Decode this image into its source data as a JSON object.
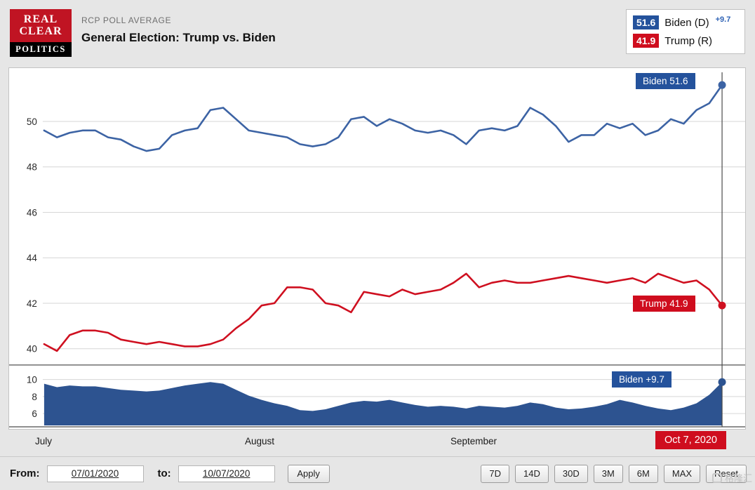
{
  "header": {
    "logo": {
      "line1": "REAL",
      "line2": "CLEAR",
      "line3": "POLITICS"
    },
    "kicker": "RCP POLL AVERAGE",
    "title": "General Election: Trump vs. Biden"
  },
  "legend": {
    "biden": {
      "value": "51.6",
      "label": "Biden (D)",
      "change": "+9.7"
    },
    "trump": {
      "value": "41.9",
      "label": "Trump (R)"
    }
  },
  "overlays": {
    "biden_end": "Biden 51.6",
    "trump_end": "Trump 41.9",
    "spread_end": "Biden +9.7",
    "date_end": "Oct 7, 2020"
  },
  "controls": {
    "from_label": "From:",
    "from_value": "07/01/2020",
    "to_label": "to:",
    "to_value": "10/07/2020",
    "apply_label": "Apply",
    "range_buttons": [
      "7D",
      "14D",
      "30D",
      "3M",
      "6M",
      "MAX",
      "Reset"
    ]
  },
  "watermark": "格隆汇",
  "colors": {
    "biden_chip_blue": "#24529c",
    "biden_line_blue": "#3c63a4",
    "trump_red": "#cf0d1e",
    "spread_area_navy": "#2d5390",
    "grid": "#d6d6d6",
    "logo_red": "#c01423"
  },
  "chart_data": {
    "type": "line",
    "title": "General Election: Trump vs. Biden",
    "subtitle": "RCP Poll Average",
    "x_axis": {
      "tick_labels": [
        "July",
        "August",
        "September"
      ],
      "start": "07/01/2020",
      "end": "10/07/2020",
      "end_label": "Oct 7, 2020"
    },
    "main_panel": {
      "ylim": [
        39.3,
        52.1
      ],
      "yticks": [
        50,
        48,
        46,
        44,
        42,
        40
      ],
      "grid": true,
      "series": [
        {
          "name": "Biden",
          "color": "#3c63a4",
          "values": [
            49.6,
            49.3,
            49.5,
            49.6,
            49.6,
            49.3,
            49.2,
            48.9,
            48.7,
            48.8,
            49.4,
            49.6,
            49.7,
            50.5,
            50.6,
            50.1,
            49.6,
            49.5,
            49.4,
            49.3,
            49.0,
            48.9,
            49.0,
            49.3,
            50.1,
            50.2,
            49.8,
            50.1,
            49.9,
            49.6,
            49.5,
            49.6,
            49.4,
            49.0,
            49.6,
            49.7,
            49.6,
            49.8,
            50.6,
            50.3,
            49.8,
            49.1,
            49.4,
            49.4,
            49.9,
            49.7,
            49.9,
            49.4,
            49.6,
            50.1,
            49.9,
            50.5,
            50.8,
            51.6
          ]
        },
        {
          "name": "Trump",
          "color": "#cf1020",
          "values": [
            40.2,
            39.9,
            40.6,
            40.8,
            40.8,
            40.7,
            40.4,
            40.3,
            40.2,
            40.3,
            40.2,
            40.1,
            40.1,
            40.2,
            40.4,
            40.9,
            41.3,
            41.9,
            42.0,
            42.7,
            42.7,
            42.6,
            42.0,
            41.9,
            41.6,
            42.5,
            42.4,
            42.3,
            42.6,
            42.4,
            42.5,
            42.6,
            42.9,
            43.3,
            42.7,
            42.9,
            43.0,
            42.9,
            42.9,
            43.0,
            43.1,
            43.2,
            43.1,
            43.0,
            42.9,
            43.0,
            43.1,
            42.9,
            43.3,
            43.1,
            42.9,
            43.0,
            42.6,
            41.9
          ]
        }
      ]
    },
    "spread_panel": {
      "ylim": [
        4.6,
        11.1
      ],
      "yticks": [
        10,
        8,
        6
      ],
      "grid": true,
      "series": [
        {
          "name": "Biden spread",
          "type": "area",
          "color": "#2d5390",
          "values": [
            9.5,
            9.1,
            9.3,
            9.2,
            9.2,
            9.0,
            8.8,
            8.7,
            8.6,
            8.7,
            9.0,
            9.3,
            9.5,
            9.7,
            9.5,
            8.8,
            8.1,
            7.6,
            7.2,
            6.9,
            6.4,
            6.3,
            6.5,
            6.9,
            7.3,
            7.5,
            7.4,
            7.6,
            7.3,
            7.0,
            6.8,
            6.9,
            6.8,
            6.6,
            6.9,
            6.8,
            6.7,
            6.9,
            7.3,
            7.1,
            6.7,
            6.5,
            6.6,
            6.8,
            7.1,
            7.6,
            7.3,
            6.9,
            6.6,
            6.4,
            6.7,
            7.2,
            8.2,
            9.7
          ]
        }
      ]
    },
    "end_values": {
      "biden": 51.6,
      "trump": 41.9,
      "spread": 9.7,
      "date": "Oct 7, 2020"
    }
  }
}
